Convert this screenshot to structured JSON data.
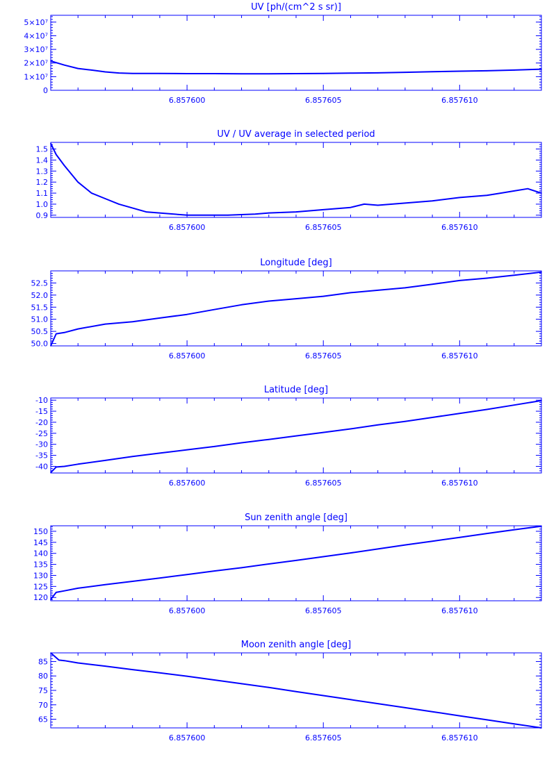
{
  "style": {
    "line_color": "#0000ff",
    "background": "#ffffff"
  },
  "x_ticks": [
    "6.857600",
    "6.857605",
    "6.857610"
  ],
  "chart_data": [
    {
      "type": "line",
      "title": "UV [ph/(cm^2 s sr)]",
      "xlim": [
        6.857595,
        6.857613
      ],
      "ylim": [
        0,
        55000000
      ],
      "y_ticks": [
        0,
        10000000,
        20000000,
        30000000,
        40000000,
        50000000
      ],
      "y_tick_labels": [
        "0",
        "1×10⁷",
        "2×10⁷",
        "3×10⁷",
        "4×10⁷",
        "5×10⁷"
      ],
      "x": [
        6.857595,
        6.8575955,
        6.857596,
        6.8575965,
        6.857597,
        6.8575975,
        6.857598,
        6.857599,
        6.8576,
        6.857601,
        6.857602,
        6.857603,
        6.857604,
        6.857605,
        6.857606,
        6.857607,
        6.857608,
        6.857609,
        6.85761,
        6.857611,
        6.857612,
        6.857613
      ],
      "y": [
        21500000,
        18500000,
        16000000,
        14800000,
        13500000,
        12700000,
        12400000,
        12300000,
        12200000,
        12200000,
        12100000,
        12100000,
        12200000,
        12300000,
        12600000,
        12800000,
        13200000,
        13600000,
        14000000,
        14300000,
        14800000,
        15500000
      ]
    },
    {
      "type": "line",
      "title": "UV / UV average in selected period",
      "xlim": [
        6.857595,
        6.857613
      ],
      "ylim": [
        0.88,
        1.56
      ],
      "y_ticks": [
        0.9,
        1.0,
        1.1,
        1.2,
        1.3,
        1.4,
        1.5
      ],
      "y_tick_labels": [
        "0.9",
        "1.0",
        "1.1",
        "1.2",
        "1.3",
        "1.4",
        "1.5"
      ],
      "x": [
        6.857595,
        6.8575952,
        6.8575955,
        6.857596,
        6.8575965,
        6.857597,
        6.8575975,
        6.8575985,
        6.8576,
        6.8576015,
        6.8576025,
        6.857603,
        6.857604,
        6.857605,
        6.857606,
        6.8576065,
        6.857607,
        6.857608,
        6.857609,
        6.85761,
        6.857611,
        6.8576115,
        6.857612,
        6.8576125,
        6.857613
      ],
      "y": [
        1.55,
        1.45,
        1.35,
        1.2,
        1.1,
        1.05,
        1.0,
        0.93,
        0.9,
        0.9,
        0.91,
        0.92,
        0.93,
        0.95,
        0.97,
        1.0,
        0.99,
        1.01,
        1.03,
        1.06,
        1.08,
        1.1,
        1.12,
        1.14,
        1.1
      ]
    },
    {
      "type": "line",
      "title": "Longitude [deg]",
      "xlim": [
        6.857595,
        6.857613
      ],
      "ylim": [
        49.9,
        53.0
      ],
      "y_ticks": [
        50.0,
        50.5,
        51.0,
        51.5,
        52.0,
        52.5
      ],
      "y_tick_labels": [
        "50.0",
        "50.5",
        "51.0",
        "51.5",
        "52.0",
        "52.5"
      ],
      "x": [
        6.857595,
        6.8575952,
        6.8575955,
        6.857596,
        6.857597,
        6.857598,
        6.857599,
        6.8576,
        6.857601,
        6.857602,
        6.857603,
        6.857604,
        6.857605,
        6.857606,
        6.857607,
        6.857608,
        6.857609,
        6.85761,
        6.857611,
        6.857612,
        6.857613
      ],
      "y": [
        49.9,
        50.4,
        50.45,
        50.6,
        50.8,
        50.9,
        51.05,
        51.2,
        51.4,
        51.6,
        51.75,
        51.85,
        51.95,
        52.1,
        52.2,
        52.3,
        52.45,
        52.6,
        52.7,
        52.82,
        52.95
      ]
    },
    {
      "type": "line",
      "title": "Latitude [deg]",
      "xlim": [
        6.857595,
        6.857613
      ],
      "ylim": [
        -43,
        -9
      ],
      "y_ticks": [
        -40,
        -35,
        -30,
        -25,
        -20,
        -15,
        -10
      ],
      "y_tick_labels": [
        "-40",
        "-35",
        "-30",
        "-25",
        "-20",
        "-15",
        "-10"
      ],
      "x": [
        6.857595,
        6.8575952,
        6.8575955,
        6.857596,
        6.857597,
        6.857598,
        6.857599,
        6.8576,
        6.857601,
        6.857602,
        6.857603,
        6.857604,
        6.857605,
        6.857606,
        6.857607,
        6.857608,
        6.857609,
        6.85761,
        6.857611,
        6.857612,
        6.857613
      ],
      "y": [
        -42.8,
        -40.3,
        -40,
        -39,
        -37.3,
        -35.5,
        -34,
        -32.5,
        -31,
        -29.3,
        -27.8,
        -26.2,
        -24.6,
        -23,
        -21.2,
        -19.6,
        -17.8,
        -16,
        -14.2,
        -12.2,
        -10.2
      ]
    },
    {
      "type": "line",
      "title": "Sun zenith angle [deg]",
      "xlim": [
        6.857595,
        6.857613
      ],
      "ylim": [
        118.5,
        152.5
      ],
      "y_ticks": [
        120,
        125,
        130,
        135,
        140,
        145,
        150
      ],
      "y_tick_labels": [
        "120",
        "125",
        "130",
        "135",
        "140",
        "145",
        "150"
      ],
      "x": [
        6.857595,
        6.8575952,
        6.8575955,
        6.857596,
        6.857597,
        6.857598,
        6.857599,
        6.8576,
        6.857601,
        6.857602,
        6.857603,
        6.857604,
        6.857605,
        6.857606,
        6.857607,
        6.857608,
        6.857609,
        6.85761,
        6.857611,
        6.857612,
        6.857613
      ],
      "y": [
        119.1,
        122.3,
        123,
        124.2,
        125.8,
        127.3,
        128.8,
        130.4,
        132,
        133.5,
        135.2,
        136.8,
        138.5,
        140.2,
        142,
        143.8,
        145.5,
        147.2,
        149,
        150.7,
        152.3
      ]
    },
    {
      "type": "line",
      "title": "Moon zenith angle [deg]",
      "xlim": [
        6.857595,
        6.857613
      ],
      "ylim": [
        62,
        88
      ],
      "y_ticks": [
        65,
        70,
        75,
        80,
        85
      ],
      "y_tick_labels": [
        "65",
        "70",
        "75",
        "80",
        "85"
      ],
      "x": [
        6.857595,
        6.8575953,
        6.8575955,
        6.857596,
        6.857597,
        6.857598,
        6.857599,
        6.8576,
        6.857601,
        6.857602,
        6.857603,
        6.857604,
        6.857605,
        6.857606,
        6.857607,
        6.857608,
        6.857609,
        6.85761,
        6.857611,
        6.857612,
        6.857613
      ],
      "y": [
        88,
        85.5,
        85.3,
        84.5,
        83.4,
        82.2,
        81.1,
        79.9,
        78.6,
        77.3,
        76,
        74.6,
        73.2,
        71.8,
        70.4,
        69,
        67.6,
        66.2,
        64.8,
        63.4,
        62
      ]
    }
  ]
}
